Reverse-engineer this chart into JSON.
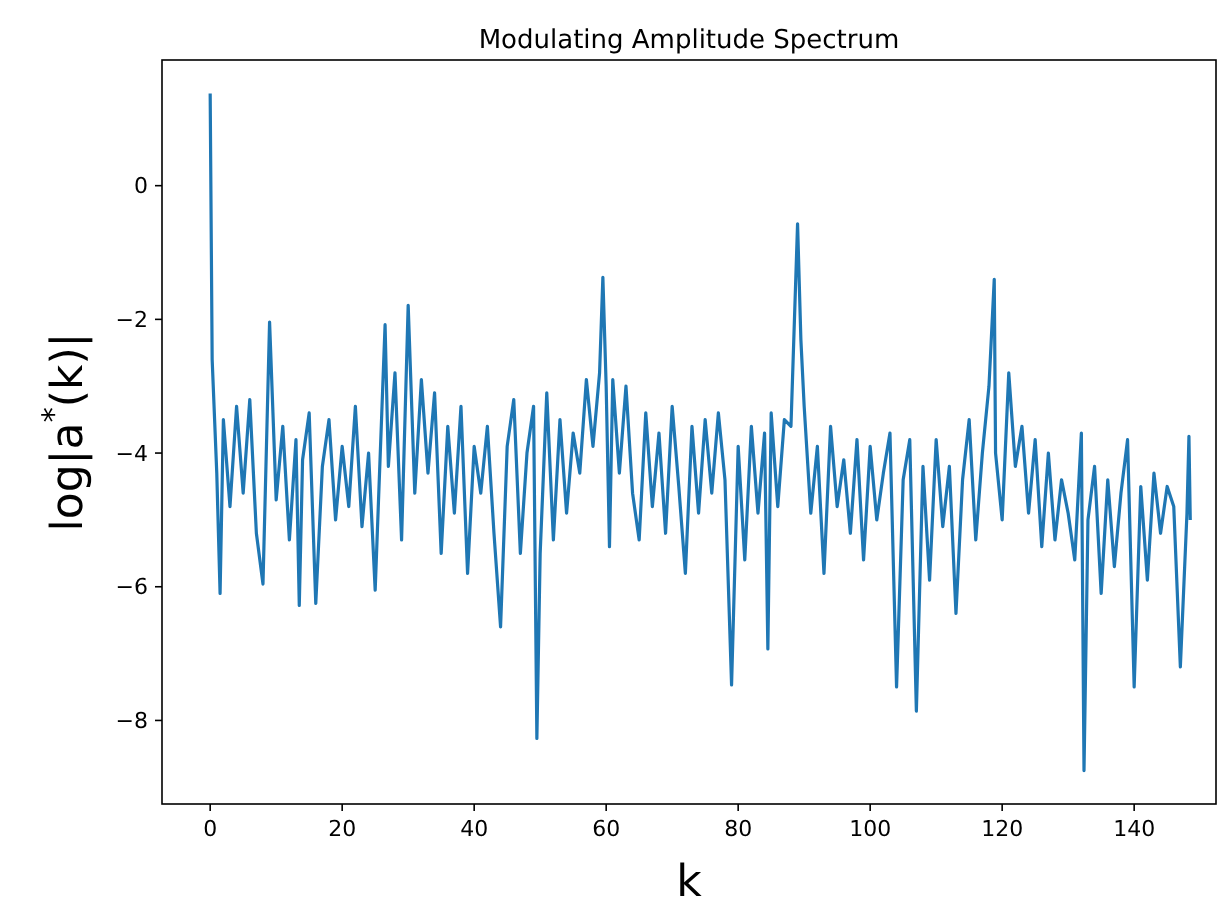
{
  "chart_data": {
    "type": "line",
    "title": "Modulating Amplitude Spectrum",
    "xlabel": "k",
    "ylabel": "log|a$^{*}$(k)|",
    "xlim": [
      -7.3,
      152.4
    ],
    "ylim": [
      -9.25,
      1.88
    ],
    "xticks": [
      0,
      20,
      40,
      60,
      80,
      100,
      120,
      140
    ],
    "yticks": [
      -8,
      -6,
      -4,
      -2,
      0
    ],
    "grid": false,
    "marker": "none",
    "line_style": "solid",
    "series": [
      {
        "color": "#1f77b4",
        "x": [
          0,
          0.3,
          1,
          1.5,
          2,
          3,
          4,
          5,
          6,
          7,
          8,
          9,
          10,
          11,
          12,
          13,
          13.5,
          14,
          15,
          16,
          17,
          18,
          19,
          20,
          21,
          22,
          23,
          24,
          25,
          26,
          26.5,
          27,
          28,
          29,
          30,
          31,
          32,
          33,
          34,
          35,
          36,
          37,
          38,
          39,
          40,
          41,
          42,
          43,
          44,
          45,
          46,
          47,
          48,
          49,
          49.5,
          50,
          51,
          52,
          53,
          54,
          55,
          56,
          57,
          58,
          59,
          59.5,
          60,
          60.5,
          61,
          62,
          63,
          64,
          65,
          66,
          67,
          68,
          69,
          70,
          71,
          72,
          73,
          74,
          75,
          76,
          77,
          78,
          79,
          80,
          81,
          82,
          83,
          84,
          84.5,
          85,
          86,
          87,
          88,
          89,
          89.5,
          90,
          91,
          92,
          93,
          94,
          95,
          96,
          97,
          98,
          99,
          100,
          101,
          102,
          103,
          104,
          105,
          106,
          107,
          108,
          109,
          110,
          111,
          112,
          113,
          114,
          115,
          116,
          117,
          118,
          118.8,
          119,
          120,
          121,
          122,
          123,
          124,
          125,
          126,
          127,
          128,
          129,
          130,
          131,
          132,
          132.4,
          133,
          134,
          135,
          136,
          137,
          138,
          139,
          140,
          141,
          142,
          143,
          144,
          145,
          146,
          147,
          148,
          148.3,
          148.5
        ],
        "values": [
          1.38,
          -2.6,
          -4.3,
          -6.1,
          -3.5,
          -4.8,
          -3.3,
          -4.6,
          -3.2,
          -5.2,
          -5.96,
          -2.04,
          -4.7,
          -3.6,
          -5.3,
          -3.8,
          -6.28,
          -4.1,
          -3.4,
          -6.25,
          -4.2,
          -3.5,
          -5.0,
          -3.9,
          -4.8,
          -3.3,
          -5.1,
          -4.0,
          -6.05,
          -3.4,
          -2.08,
          -4.2,
          -2.8,
          -5.3,
          -1.79,
          -4.6,
          -2.9,
          -4.3,
          -3.1,
          -5.5,
          -3.6,
          -4.9,
          -3.3,
          -5.8,
          -3.9,
          -4.6,
          -3.6,
          -5.2,
          -6.6,
          -3.9,
          -3.2,
          -5.5,
          -4.0,
          -3.3,
          -8.27,
          -5.5,
          -3.1,
          -5.3,
          -3.5,
          -4.9,
          -3.7,
          -4.3,
          -2.9,
          -3.9,
          -2.8,
          -1.37,
          -3.0,
          -5.4,
          -2.9,
          -4.3,
          -3.0,
          -4.6,
          -5.3,
          -3.4,
          -4.8,
          -3.7,
          -5.2,
          -3.3,
          -4.5,
          -5.8,
          -3.6,
          -4.9,
          -3.5,
          -4.6,
          -3.4,
          -4.4,
          -7.47,
          -3.9,
          -5.6,
          -3.6,
          -4.9,
          -3.7,
          -6.93,
          -3.4,
          -4.8,
          -3.5,
          -3.6,
          -0.57,
          -2.3,
          -3.3,
          -4.9,
          -3.9,
          -5.8,
          -3.6,
          -4.8,
          -4.1,
          -5.2,
          -3.8,
          -5.6,
          -3.9,
          -5.0,
          -4.3,
          -3.7,
          -7.5,
          -4.4,
          -3.8,
          -7.86,
          -4.2,
          -5.9,
          -3.8,
          -5.1,
          -4.2,
          -6.4,
          -4.4,
          -3.5,
          -5.3,
          -4.0,
          -3.0,
          -1.4,
          -4.0,
          -5.0,
          -2.8,
          -4.2,
          -3.6,
          -4.9,
          -3.8,
          -5.4,
          -4.0,
          -5.3,
          -4.4,
          -4.9,
          -5.6,
          -3.7,
          -8.75,
          -5.0,
          -4.2,
          -6.1,
          -4.4,
          -5.7,
          -4.6,
          -3.8,
          -7.5,
          -4.5,
          -5.9,
          -4.3,
          -5.2,
          -4.5,
          -4.8,
          -7.2,
          -4.9,
          -3.75,
          -5.0
        ]
      }
    ]
  }
}
